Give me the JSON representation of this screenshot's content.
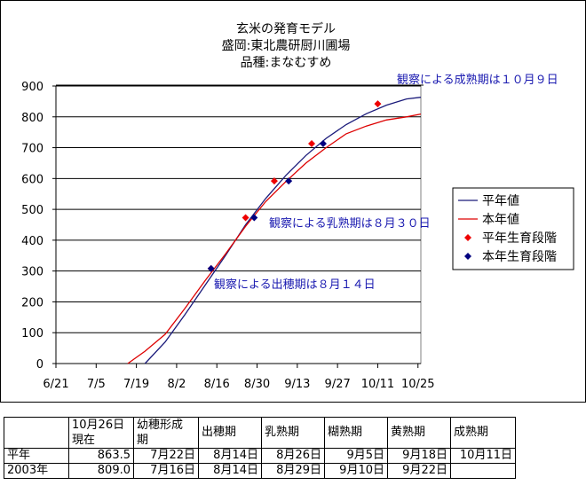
{
  "chart_data": {
    "type": "line",
    "title_lines": [
      "玄米の発育モデル",
      "盛岡:東北農研厨川圃場",
      "品種:まなむすめ"
    ],
    "x_ticks": [
      "6/21",
      "7/5",
      "7/19",
      "8/2",
      "8/16",
      "8/30",
      "9/13",
      "9/27",
      "10/11",
      "10/25"
    ],
    "x_tick_dates": [
      "06-21",
      "07-05",
      "07-19",
      "08-02",
      "08-16",
      "08-30",
      "09-13",
      "09-27",
      "10-11",
      "10-25"
    ],
    "xlim": [
      "06-21",
      "10-26"
    ],
    "ylim": [
      0,
      900
    ],
    "y_ticks": [
      0,
      100,
      200,
      300,
      400,
      500,
      600,
      700,
      800,
      900
    ],
    "grid": "horizontal",
    "legend_placement": "right",
    "series": [
      {
        "name": "平年値",
        "kind": "line",
        "color": "#1a1a7a",
        "x": [
          "07-22",
          "07-29",
          "08-05",
          "08-12",
          "08-19",
          "08-26",
          "09-02",
          "09-09",
          "09-16",
          "09-23",
          "09-30",
          "10-07",
          "10-14",
          "10-21",
          "10-26"
        ],
        "y": [
          0,
          70,
          160,
          255,
          350,
          450,
          535,
          610,
          675,
          730,
          775,
          810,
          838,
          858,
          863.5
        ]
      },
      {
        "name": "本年値",
        "kind": "line",
        "color": "#dd0000",
        "x": [
          "07-16",
          "07-22",
          "07-29",
          "08-05",
          "08-12",
          "08-19",
          "08-26",
          "09-02",
          "09-09",
          "09-16",
          "09-23",
          "09-30",
          "10-07",
          "10-14",
          "10-21",
          "10-26"
        ],
        "y": [
          0,
          40,
          95,
          180,
          270,
          355,
          445,
          525,
          590,
          650,
          700,
          745,
          770,
          790,
          800,
          809.0
        ]
      },
      {
        "name": "平年生育段階",
        "kind": "marker",
        "color": "#ee0000",
        "x": [
          "08-14",
          "08-26",
          "09-05",
          "09-18",
          "10-11"
        ],
        "y": [
          308,
          473,
          592,
          713,
          842
        ]
      },
      {
        "name": "本年生育段階",
        "kind": "marker",
        "color": "#000080",
        "x": [
          "08-14",
          "08-29",
          "09-10",
          "09-22"
        ],
        "y": [
          308,
          473,
          592,
          713
        ]
      }
    ],
    "annotations": [
      {
        "text": "観察による成熟期は１０月９日"
      },
      {
        "text": "観察による乳熟期は８月３０日"
      },
      {
        "text": "観察による出穂期は８月１４日"
      }
    ]
  },
  "table": {
    "headers": [
      "",
      "10月26日\n現在",
      "幼穂形成\n期",
      "出穂期",
      "乳熟期",
      "糊熟期",
      "黄熟期",
      "成熟期"
    ],
    "rows": [
      [
        "平年",
        "863.5",
        "7月22日",
        "8月14日",
        "8月26日",
        "9月5日",
        "9月18日",
        "10月11日"
      ],
      [
        "2003年",
        "809.0",
        "7月16日",
        "8月14日",
        "8月29日",
        "9月10日",
        "9月22日",
        ""
      ]
    ]
  }
}
